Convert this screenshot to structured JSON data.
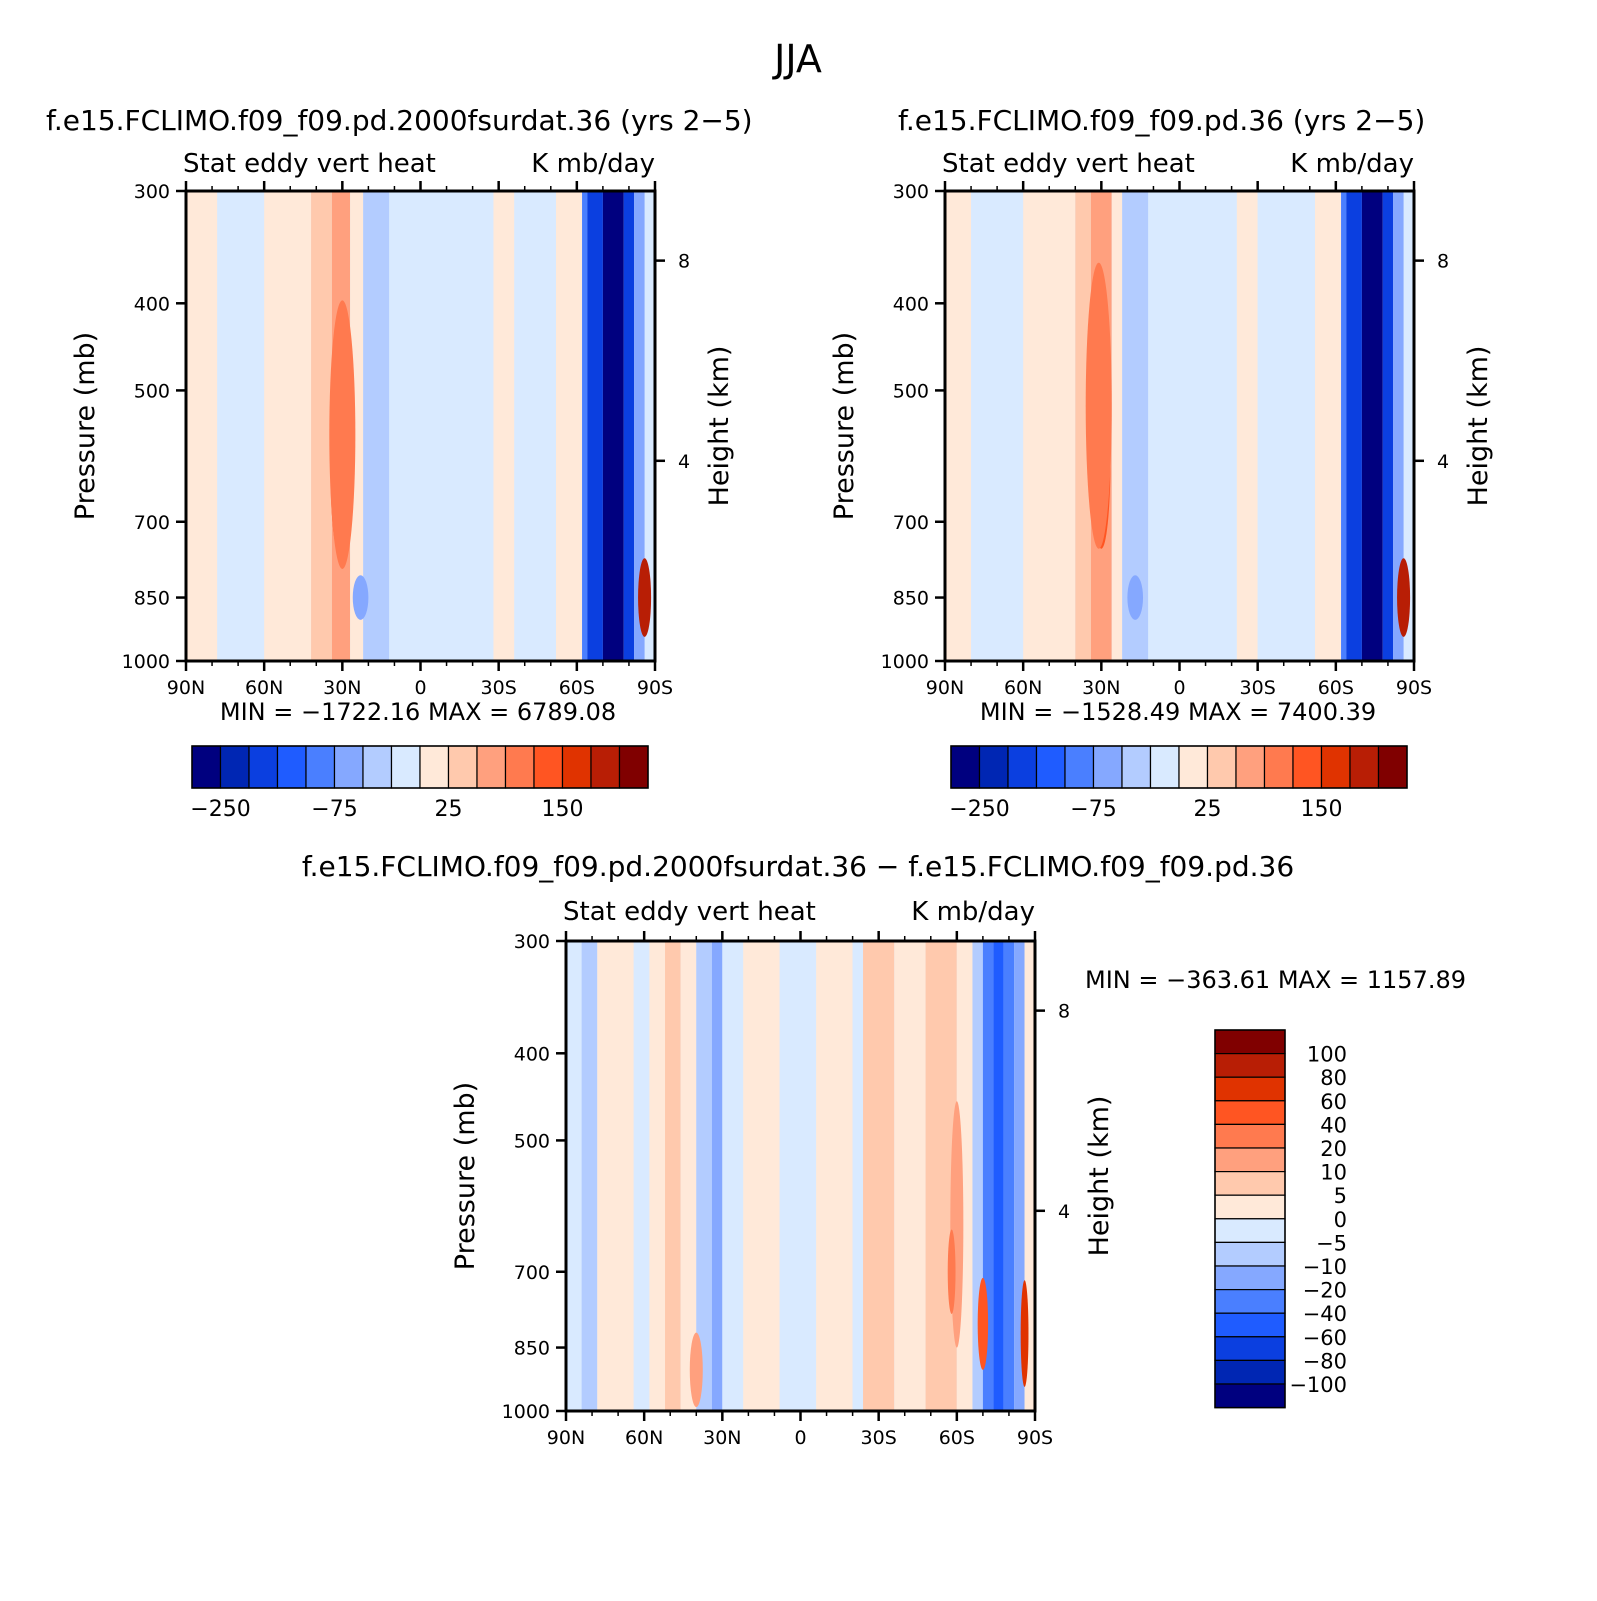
{
  "figure": {
    "title": "JJA"
  },
  "palettes": {
    "main": [
      "#00007f",
      "#0026b3",
      "#0b3fe0",
      "#1f5cff",
      "#4a7fff",
      "#85a8ff",
      "#b3ccff",
      "#d9eaff",
      "#ffe9d9",
      "#ffc9ad",
      "#ffa07e",
      "#ff7a4f",
      "#ff5522",
      "#e03300",
      "#b81e05",
      "#800000"
    ],
    "diff": [
      "#00007f",
      "#0026b3",
      "#0b3fe0",
      "#1f5cff",
      "#4a7fff",
      "#85a8ff",
      "#b3ccff",
      "#d9eaff",
      "#ffe9d9",
      "#ffc9ad",
      "#ffa07e",
      "#ff7a4f",
      "#ff5522",
      "#e03300",
      "#b81e05",
      "#800000"
    ]
  },
  "chart_data": [
    {
      "id": "panel1",
      "type": "contour",
      "title": "f.e15.FCLIMO.f09_f09.pd.2000fsurdat.36 (yrs 2−5)",
      "subtitle_left": "Stat eddy vert heat",
      "subtitle_right": "K mb/day",
      "ylabel": "Pressure (mb)",
      "ylabel_right": "Height (km)",
      "x_ticks": [
        "90N",
        "60N",
        "30N",
        "0",
        "30S",
        "60S",
        "90S"
      ],
      "x_range": [
        90,
        -90
      ],
      "y_ticks": [
        "300",
        "400",
        "500",
        "700",
        "850",
        "1000"
      ],
      "y_values": [
        300,
        400,
        500,
        700,
        850,
        1000
      ],
      "y_range": [
        300,
        1000
      ],
      "right_ticks": [
        "8",
        "4"
      ],
      "right_values": [
        8,
        4
      ],
      "min_max": "MIN = −1722.16   MAX = 6789.08",
      "colorbar_labels": [
        "−250",
        "−75",
        "25",
        "150"
      ],
      "bands": [
        {
          "lat0": 90,
          "lat1": 78,
          "level": 8
        },
        {
          "lat0": 78,
          "lat1": 60,
          "level": 7
        },
        {
          "lat0": 60,
          "lat1": 42,
          "level": 8
        },
        {
          "lat0": 42,
          "lat1": 34,
          "level": 9
        },
        {
          "lat0": 34,
          "lat1": 27,
          "level": 10
        },
        {
          "lat0": 27,
          "lat1": 22,
          "level": 8
        },
        {
          "lat0": 22,
          "lat1": 12,
          "level": 6
        },
        {
          "lat0": 12,
          "lat1": -28,
          "level": 7
        },
        {
          "lat0": -28,
          "lat1": -36,
          "level": 8
        },
        {
          "lat0": -36,
          "lat1": -52,
          "level": 7
        },
        {
          "lat0": -52,
          "lat1": -62,
          "level": 8
        },
        {
          "lat0": -62,
          "lat1": -64,
          "level": 4
        },
        {
          "lat0": -64,
          "lat1": -70,
          "level": 2
        },
        {
          "lat0": -70,
          "lat1": -78,
          "level": 0
        },
        {
          "lat0": -78,
          "lat1": -82,
          "level": 2
        },
        {
          "lat0": -82,
          "lat1": -86,
          "level": 5
        }
      ],
      "blobs": [
        {
          "lat": 31,
          "p": 620,
          "rlat": 3.5,
          "rp": 140,
          "level": 12
        },
        {
          "lat": 30,
          "p": 560,
          "rlat": 5,
          "rp": 230,
          "level": 11
        },
        {
          "lat": 23,
          "p": 850,
          "rlat": 3,
          "rp": 50,
          "level": 5
        },
        {
          "lat": -86,
          "p": 850,
          "rlat": 2.5,
          "rp": 90,
          "level": 14
        }
      ]
    },
    {
      "id": "panel2",
      "type": "contour",
      "title": "f.e15.FCLIMO.f09_f09.pd.36 (yrs 2−5)",
      "subtitle_left": "Stat eddy vert heat",
      "subtitle_right": "K mb/day",
      "ylabel": "Pressure (mb)",
      "ylabel_right": "Height (km)",
      "x_ticks": [
        "90N",
        "60N",
        "30N",
        "0",
        "30S",
        "60S",
        "90S"
      ],
      "x_range": [
        90,
        -90
      ],
      "y_ticks": [
        "300",
        "400",
        "500",
        "700",
        "850",
        "1000"
      ],
      "y_values": [
        300,
        400,
        500,
        700,
        850,
        1000
      ],
      "y_range": [
        300,
        1000
      ],
      "right_ticks": [
        "8",
        "4"
      ],
      "right_values": [
        8,
        4
      ],
      "min_max": "MIN = −1528.49   MAX = 7400.39",
      "colorbar_labels": [
        "−250",
        "−75",
        "25",
        "150"
      ],
      "bands": [
        {
          "lat0": 90,
          "lat1": 80,
          "level": 8
        },
        {
          "lat0": 80,
          "lat1": 60,
          "level": 7
        },
        {
          "lat0": 60,
          "lat1": 40,
          "level": 8
        },
        {
          "lat0": 40,
          "lat1": 34,
          "level": 9
        },
        {
          "lat0": 34,
          "lat1": 26,
          "level": 10
        },
        {
          "lat0": 26,
          "lat1": 22,
          "level": 8
        },
        {
          "lat0": 22,
          "lat1": 12,
          "level": 6
        },
        {
          "lat0": 12,
          "lat1": -22,
          "level": 7
        },
        {
          "lat0": -22,
          "lat1": -30,
          "level": 8
        },
        {
          "lat0": -30,
          "lat1": -52,
          "level": 7
        },
        {
          "lat0": -52,
          "lat1": -62,
          "level": 8
        },
        {
          "lat0": -62,
          "lat1": -64,
          "level": 4
        },
        {
          "lat0": -64,
          "lat1": -70,
          "level": 2
        },
        {
          "lat0": -70,
          "lat1": -78,
          "level": 0
        },
        {
          "lat0": -78,
          "lat1": -82,
          "level": 2
        },
        {
          "lat0": -82,
          "lat1": -86,
          "level": 5
        }
      ],
      "blobs": [
        {
          "lat": 30,
          "p": 600,
          "rlat": 3.5,
          "rp": 150,
          "level": 12
        },
        {
          "lat": 31,
          "p": 520,
          "rlat": 5,
          "rp": 230,
          "level": 11
        },
        {
          "lat": 17,
          "p": 850,
          "rlat": 3,
          "rp": 50,
          "level": 5
        },
        {
          "lat": -86,
          "p": 850,
          "rlat": 2.5,
          "rp": 90,
          "level": 14
        }
      ]
    },
    {
      "id": "panel3",
      "type": "contour",
      "title": "f.e15.FCLIMO.f09_f09.pd.2000fsurdat.36 − f.e15.FCLIMO.f09_f09.pd.36",
      "subtitle_left": "Stat eddy vert heat",
      "subtitle_right": "K mb/day",
      "ylabel": "Pressure (mb)",
      "ylabel_right": "Height (km)",
      "x_ticks": [
        "90N",
        "60N",
        "30N",
        "0",
        "30S",
        "60S",
        "90S"
      ],
      "x_range": [
        90,
        -90
      ],
      "y_ticks": [
        "300",
        "400",
        "500",
        "700",
        "850",
        "1000"
      ],
      "y_values": [
        300,
        400,
        500,
        700,
        850,
        1000
      ],
      "y_range": [
        300,
        1000
      ],
      "right_ticks": [
        "8",
        "4"
      ],
      "right_values": [
        8,
        4
      ],
      "min_max": "MIN = −363.61   MAX = 1157.89",
      "colorbar_labels": [
        "100",
        "80",
        "60",
        "40",
        "20",
        "10",
        "5",
        "0",
        "−5",
        "−10",
        "−20",
        "−40",
        "−60",
        "−80",
        "−100"
      ],
      "bands": [
        {
          "lat0": 90,
          "lat1": 84,
          "level": 7
        },
        {
          "lat0": 84,
          "lat1": 78,
          "level": 6
        },
        {
          "lat0": 78,
          "lat1": 64,
          "level": 8
        },
        {
          "lat0": 64,
          "lat1": 58,
          "level": 7
        },
        {
          "lat0": 58,
          "lat1": 52,
          "level": 8
        },
        {
          "lat0": 52,
          "lat1": 46,
          "level": 9
        },
        {
          "lat0": 46,
          "lat1": 40,
          "level": 8
        },
        {
          "lat0": 40,
          "lat1": 34,
          "level": 6
        },
        {
          "lat0": 34,
          "lat1": 30,
          "level": 5
        },
        {
          "lat0": 30,
          "lat1": 22,
          "level": 7
        },
        {
          "lat0": 22,
          "lat1": 8,
          "level": 8
        },
        {
          "lat0": 8,
          "lat1": -6,
          "level": 7
        },
        {
          "lat0": -6,
          "lat1": -20,
          "level": 8
        },
        {
          "lat0": -20,
          "lat1": -24,
          "level": 7
        },
        {
          "lat0": -24,
          "lat1": -36,
          "level": 9
        },
        {
          "lat0": -36,
          "lat1": -48,
          "level": 8
        },
        {
          "lat0": -48,
          "lat1": -60,
          "level": 9
        },
        {
          "lat0": -60,
          "lat1": -66,
          "level": 8
        },
        {
          "lat0": -66,
          "lat1": -70,
          "level": 6
        },
        {
          "lat0": -70,
          "lat1": -74,
          "level": 4
        },
        {
          "lat0": -74,
          "lat1": -78,
          "level": 3
        },
        {
          "lat0": -78,
          "lat1": -82,
          "level": 4
        },
        {
          "lat0": -82,
          "lat1": -86,
          "level": 5
        },
        {
          "lat0": -86,
          "lat1": -90,
          "level": 8
        }
      ],
      "blobs": [
        {
          "lat": 40,
          "p": 900,
          "rlat": 2.5,
          "rp": 90,
          "level": 10
        },
        {
          "lat": -60,
          "p": 620,
          "rlat": 2.5,
          "rp": 230,
          "level": 10
        },
        {
          "lat": -58,
          "p": 700,
          "rlat": 1.5,
          "rp": 80,
          "level": 11
        },
        {
          "lat": -70,
          "p": 800,
          "rlat": 2,
          "rp": 100,
          "level": 12
        },
        {
          "lat": -86,
          "p": 820,
          "rlat": 1.5,
          "rp": 120,
          "level": 13
        }
      ]
    }
  ]
}
